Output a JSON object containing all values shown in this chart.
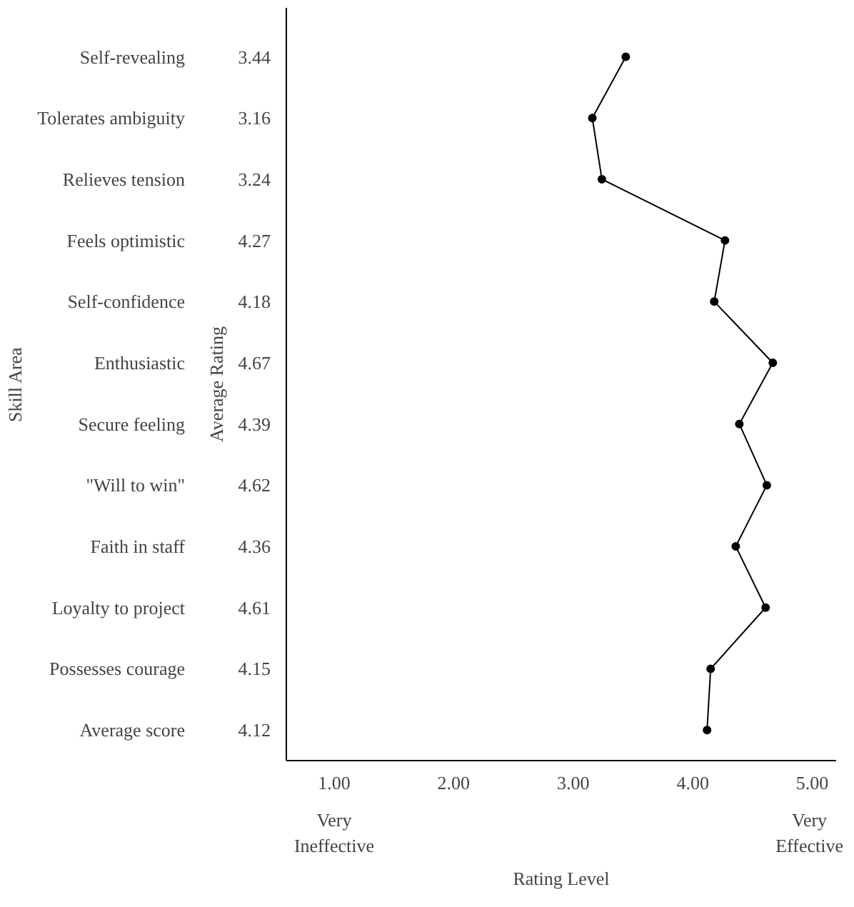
{
  "chart_data": {
    "type": "line",
    "orientation": "horizontal",
    "ylabel": "Skill Area",
    "xlabel": "Rating Level",
    "categories": [
      "Self-revealing",
      "Tolerates ambiguity",
      "Relieves tension",
      "Feels optimistic",
      "Self-confidence",
      "Enthusiastic",
      "Secure feeling",
      "\"Will to win\"",
      "Faith in staff",
      "Loyalty to project",
      "Possesses courage",
      "Average score"
    ],
    "values": [
      3.44,
      3.16,
      3.24,
      4.27,
      4.18,
      4.67,
      4.39,
      4.62,
      4.36,
      4.61,
      4.15,
      4.12
    ],
    "color": "#000000",
    "marker": "circle",
    "line_style": "solid",
    "data_labels": true,
    "xlim": [
      0.6,
      5.2
    ],
    "xticks": [
      {
        "value": 1,
        "label": "1.00"
      },
      {
        "value": 2,
        "label": "2.00"
      },
      {
        "value": 3,
        "label": "3.00"
      },
      {
        "value": 4,
        "label": "4.00"
      },
      {
        "value": 5,
        "label": "5.00"
      }
    ],
    "annotations": [
      "Average Rating",
      "Very\nIneffective",
      "Very\nEffective"
    ],
    "grid": false
  }
}
